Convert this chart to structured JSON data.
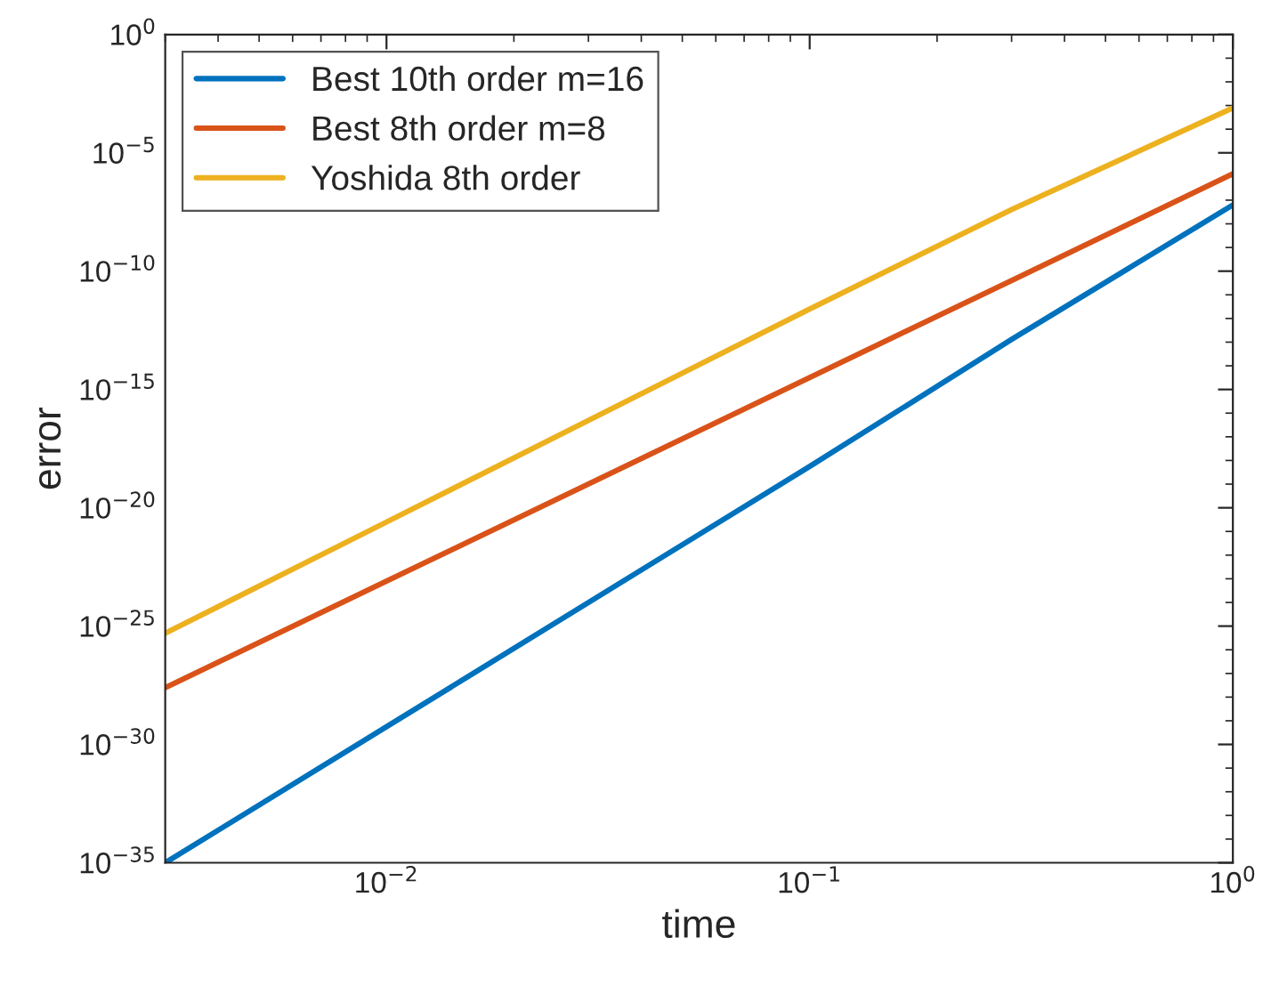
{
  "chart_data": {
    "type": "line",
    "xlabel": "time",
    "ylabel": "error",
    "log": "xy",
    "grid": false,
    "legend": "top left",
    "line_style": "solid",
    "marker": "none",
    "x": [
      0.003,
      0.01,
      0.1,
      0.3,
      1
    ],
    "xlim": [
      0.003,
      1
    ],
    "ylim": [
      1e-35,
      1
    ],
    "xticks": [
      {
        "value": 0.01,
        "label": "10$^{−2}$"
      },
      {
        "value": 0.1,
        "label": "10$^{−1}$"
      },
      {
        "value": 1,
        "label": "10$^{0}$"
      }
    ],
    "yticks": [
      {
        "value": 1e-35,
        "label": "10$^{−35}$"
      },
      {
        "value": 1e-30,
        "label": "10$^{−30}$"
      },
      {
        "value": 1e-25,
        "label": "10$^{−25}$"
      },
      {
        "value": 1e-20,
        "label": "10$^{−20}$"
      },
      {
        "value": 1e-15,
        "label": "10$^{−15}$"
      },
      {
        "value": 1e-10,
        "label": "10$^{−10}$"
      },
      {
        "value": 1e-05,
        "label": "10$^{−5}$"
      },
      {
        "value": 1,
        "label": "10$^{0}$"
      }
    ],
    "series": [
      {
        "name": "Best 10th order m=16",
        "color": "#0072bd",
        "values": [
          1e-35,
          5.6e-30,
          5.6e-19,
          1.3e-13,
          6.3e-08
        ]
      },
      {
        "name": "Best 8th order m=8",
        "color": "#d95319",
        "values": [
          2.5e-28,
          7.9e-24,
          3.2e-15,
          4e-11,
          1.3e-06
        ]
      },
      {
        "name": "Yoshida 8th order",
        "color": "#edb120",
        "values": [
          5e-26,
          2.5e-21,
          2.5e-12,
          4e-08,
          0.00079
        ]
      }
    ]
  }
}
